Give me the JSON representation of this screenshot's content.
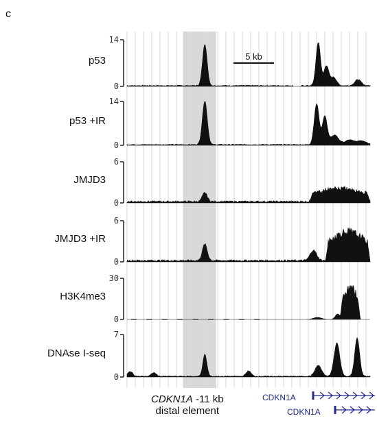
{
  "panel_letter": "c",
  "scale_bar_label": "5 kb",
  "region_label_gene": "CDKN1A",
  "region_label_rest": " -11 kb",
  "region_label_line2": "distal element",
  "gene_track": [
    {
      "label": "CDKN1A",
      "strand": "+"
    },
    {
      "label": "CDKN1A",
      "strand": "+"
    }
  ],
  "colors": {
    "signal": "#111111",
    "highlight": "#d9d9d9",
    "grid": "#d7d7d7",
    "gene": "#1f2a8a"
  },
  "chart_data": {
    "type": "area",
    "x_range_kb": [
      0,
      30
    ],
    "highlight_kb": [
      6.9,
      11.0
    ],
    "scale_bar_kb": 5,
    "tracks": [
      {
        "name": "p53",
        "ymax": 14,
        "yticks": [
          "14",
          "0"
        ],
        "peaks": [
          [
            9.6,
            0.28,
            12.5
          ],
          [
            23.6,
            0.28,
            13
          ],
          [
            24.6,
            0.3,
            6
          ],
          [
            25.5,
            0.35,
            2.5
          ],
          [
            28.5,
            0.4,
            1.8
          ]
        ],
        "noise": 0.3,
        "gaps": [
          [
            20.5,
            21.5
          ]
        ]
      },
      {
        "name": "p53 +IR",
        "ymax": 14,
        "yticks": [
          "14",
          "0"
        ],
        "peaks": [
          [
            9.6,
            0.3,
            14
          ],
          [
            23.4,
            0.3,
            13
          ],
          [
            24.4,
            0.3,
            9
          ],
          [
            25.6,
            0.5,
            3
          ],
          [
            27.5,
            0.6,
            1.5
          ],
          [
            29,
            0.5,
            1.2
          ]
        ],
        "noise": 0.3,
        "gaps": []
      },
      {
        "name": "JMJD3",
        "ymax": 6,
        "yticks": [
          "6",
          "0"
        ],
        "peaks": [
          [
            9.6,
            0.3,
            1.3
          ]
        ],
        "noise": 0.25,
        "bumps": [
          [
            22.5,
            30,
            2.2
          ]
        ],
        "gaps": []
      },
      {
        "name": "JMJD3 +IR",
        "ymax": 6,
        "yticks": [
          "6",
          "0"
        ],
        "peaks": [
          [
            9.6,
            0.3,
            2.4
          ],
          [
            23.0,
            0.4,
            1.5
          ]
        ],
        "noise": 0.25,
        "bumps": [
          [
            24.5,
            30,
            4.8
          ]
        ],
        "gaps": []
      },
      {
        "name": "H3K4me3",
        "ymax": 30,
        "yticks": [
          "30",
          "0"
        ],
        "peaks": [
          [
            23.5,
            0.5,
            1.5
          ],
          [
            26.0,
            0.3,
            4
          ]
        ],
        "noise": 0.0,
        "bumps": [
          [
            26.3,
            28.8,
            26
          ]
        ],
        "dashes": true,
        "gaps": []
      },
      {
        "name": "DNAse I-seq",
        "ymax": 7,
        "yticks": [
          "7",
          "0"
        ],
        "peaks": [
          [
            0.4,
            0.3,
            0.8
          ],
          [
            3.3,
            0.3,
            0.6
          ],
          [
            9.6,
            0.25,
            3.6
          ],
          [
            15.0,
            0.3,
            0.9
          ],
          [
            23.6,
            0.4,
            1.8
          ],
          [
            25.9,
            0.35,
            5.5
          ],
          [
            28.4,
            0.3,
            6.3
          ]
        ],
        "noise": 0.15,
        "gaps": []
      }
    ]
  }
}
